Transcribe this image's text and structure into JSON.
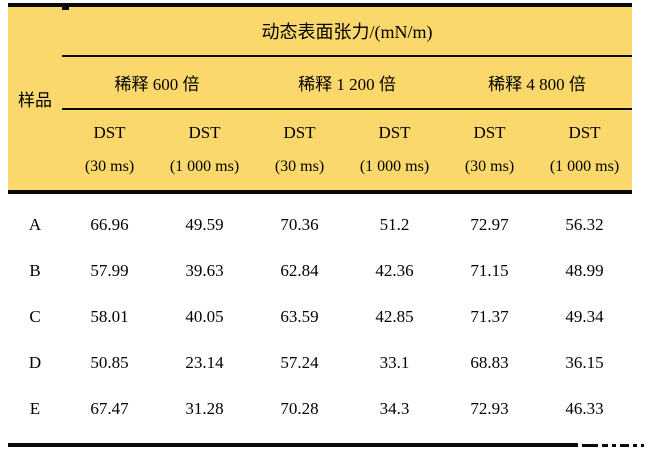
{
  "table": {
    "top_header": "动态表面张力/(mN/m)",
    "sample_col_header": "样品",
    "groups": [
      {
        "label": "稀释 600 倍"
      },
      {
        "label": "稀释 1 200 倍"
      },
      {
        "label": "稀释 4 800 倍"
      }
    ],
    "sub_headers": [
      {
        "line1": "DST",
        "line2": "(30 ms)"
      },
      {
        "line1": "DST",
        "line2": "(1 000 ms)"
      },
      {
        "line1": "DST",
        "line2": "(30 ms)"
      },
      {
        "line1": "DST",
        "line2": "(1 000 ms)"
      },
      {
        "line1": "DST",
        "line2": "(30 ms)"
      },
      {
        "line1": "DST",
        "line2": "(1 000 ms)"
      }
    ],
    "rows": [
      {
        "sample": "A",
        "values": [
          "66.96",
          "49.59",
          "70.36",
          "51.2",
          "72.97",
          "56.32"
        ]
      },
      {
        "sample": "B",
        "values": [
          "57.99",
          "39.63",
          "62.84",
          "42.36",
          "71.15",
          "48.99"
        ]
      },
      {
        "sample": "C",
        "values": [
          "58.01",
          "40.05",
          "63.59",
          "42.85",
          "71.37",
          "49.34"
        ]
      },
      {
        "sample": "D",
        "values": [
          "50.85",
          "23.14",
          "57.24",
          "33.1",
          "68.83",
          "36.15"
        ]
      },
      {
        "sample": "E",
        "values": [
          "67.47",
          "31.28",
          "70.28",
          "34.3",
          "72.93",
          "46.33"
        ]
      }
    ],
    "colors": {
      "header_bg": "#FBD86C",
      "line": "#0A0A0A",
      "text": "#000000"
    }
  }
}
